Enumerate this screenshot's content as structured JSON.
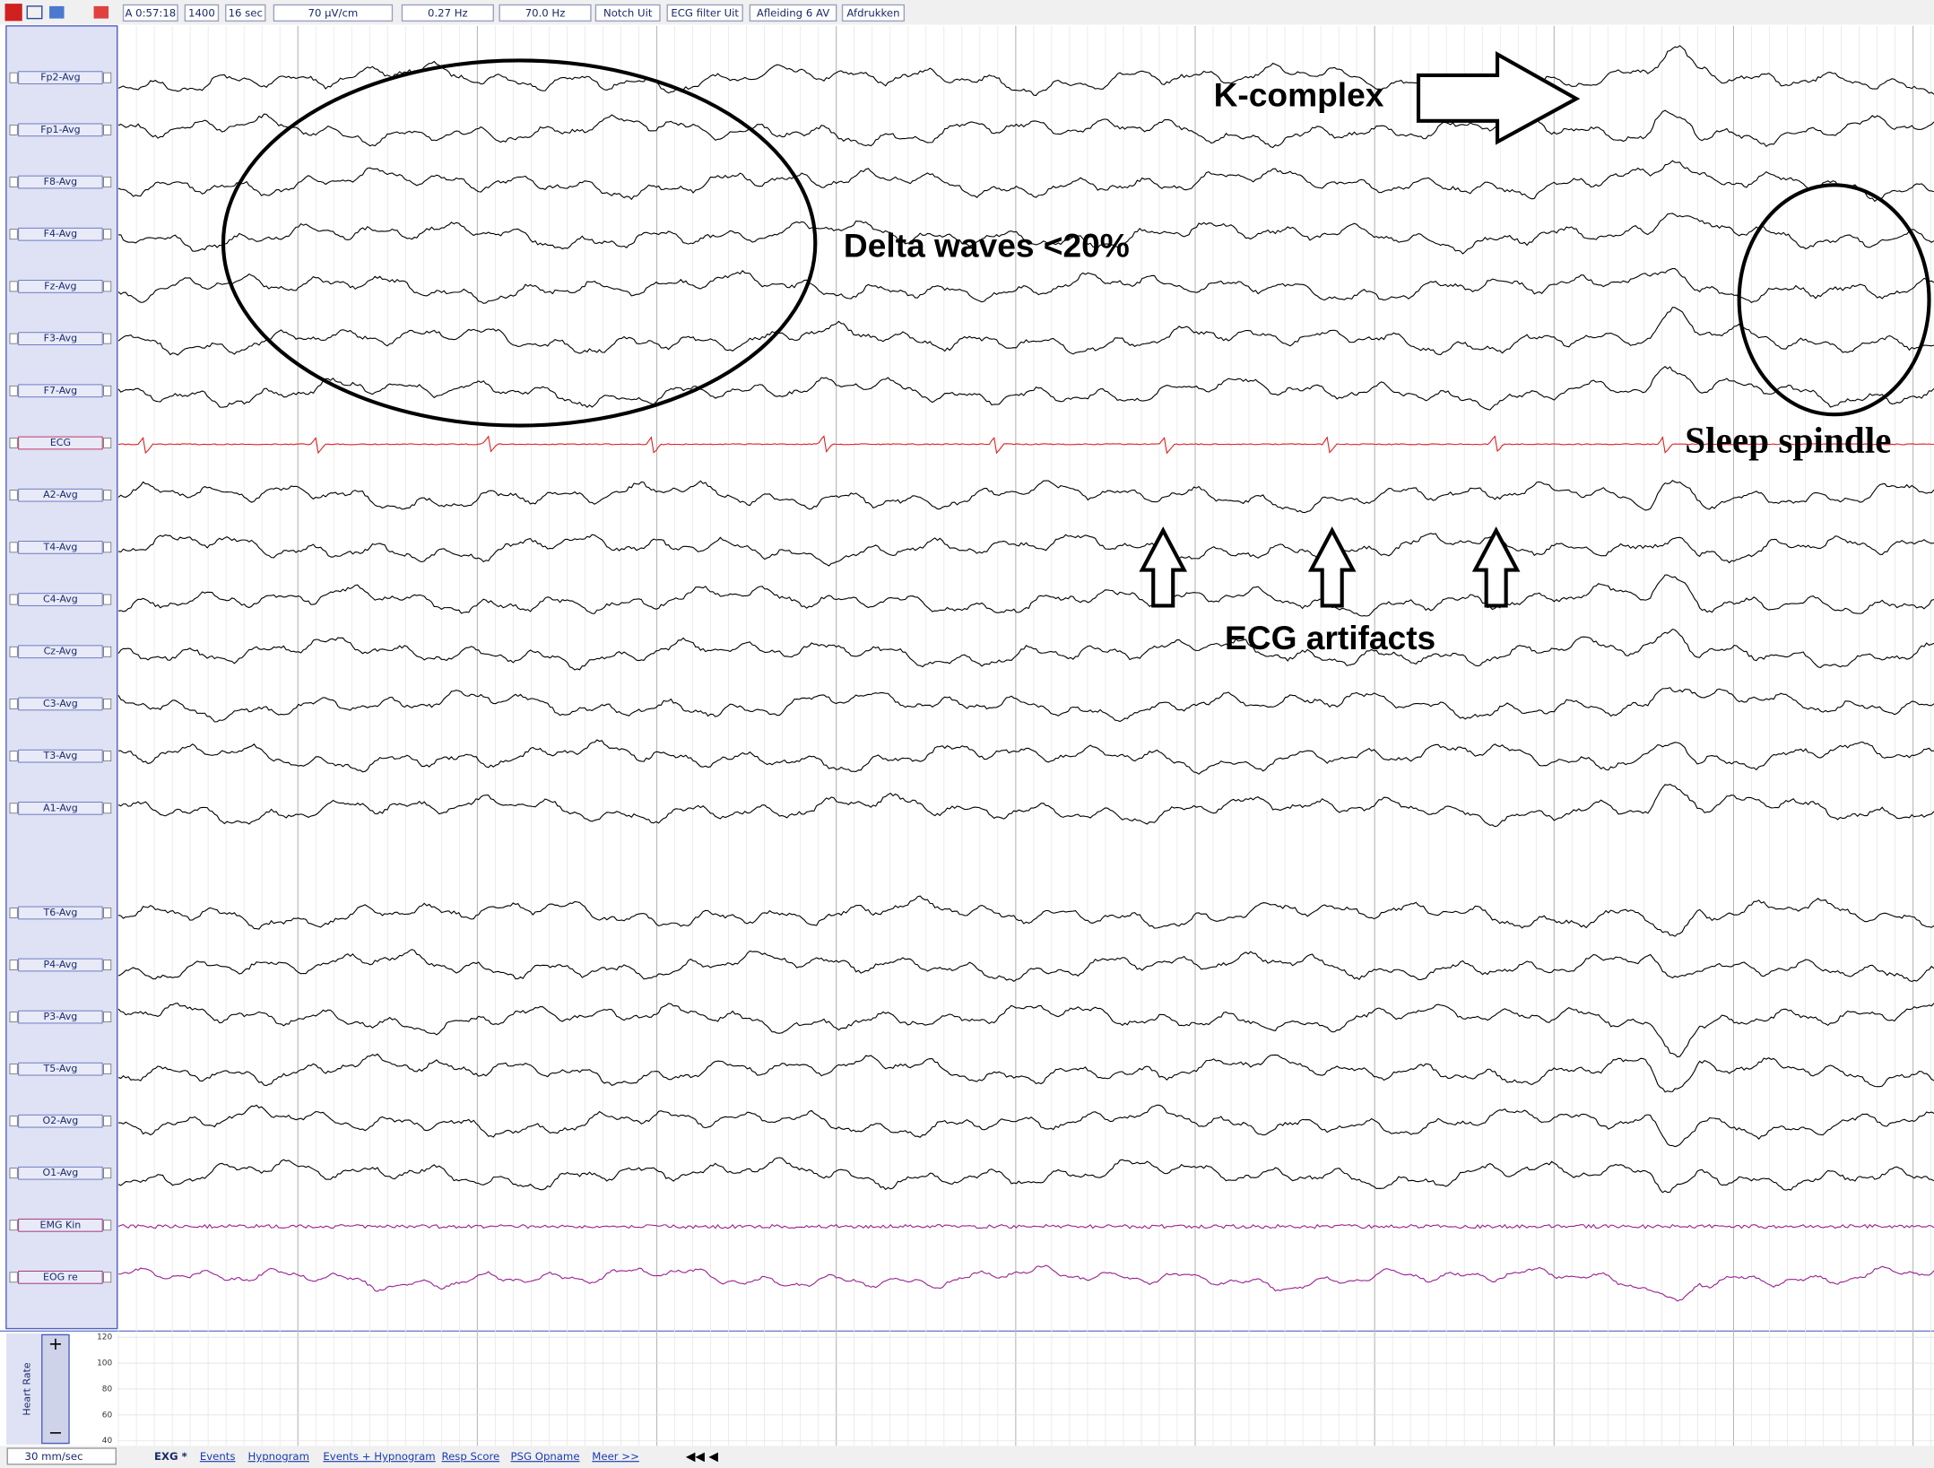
{
  "toolbar": {
    "items": [
      "A 0:57:18",
      "1400",
      "16 sec",
      "70 µV/cm",
      "0.27 Hz",
      "70.0 Hz",
      "Notch Uit",
      "ECG filter Uit",
      "Afleiding 6 AV",
      "Afdrukken"
    ]
  },
  "channels": [
    "Fp2-Avg",
    "Fp1-Avg",
    "F8-Avg",
    "F4-Avg",
    "Fz-Avg",
    "F3-Avg",
    "F7-Avg",
    "ECG",
    "A2-Avg",
    "T4-Avg",
    "C4-Avg",
    "Cz-Avg",
    "C3-Avg",
    "T3-Avg",
    "A1-Avg",
    "T6-Avg",
    "P4-Avg",
    "P3-Avg",
    "T5-Avg",
    "O2-Avg",
    "O1-Avg",
    "EMG Kin",
    "EOG re"
  ],
  "annotations": {
    "k_complex": "K-complex",
    "delta": "Delta waves <20%",
    "spindle": "Sleep spindle",
    "ecg_artifacts": "ECG artifacts"
  },
  "heart_rate": {
    "label": "Heart Rate",
    "ylim": [
      40,
      120
    ],
    "yticks": [
      120,
      100,
      80,
      60,
      40
    ]
  },
  "footer": {
    "speed": "30 mm/sec",
    "tabs": [
      "EXG *",
      "Events",
      "Hypnogram",
      "Events + Hypnogram",
      "Resp Score",
      "PSG Opname",
      "Meer >>"
    ]
  }
}
